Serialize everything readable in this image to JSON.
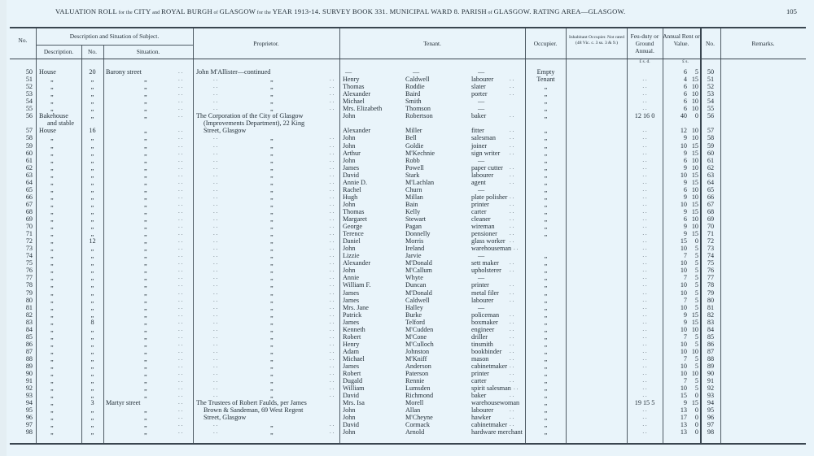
{
  "page": {
    "title_parts": [
      "VALUATION ROLL",
      "FOR THE",
      "CITY",
      "AND",
      "ROYAL BURGH",
      "OF",
      "GLASGOW",
      "FOR THE",
      "YEAR 1913-14.   SURVEY BOOK 331.   MUNICIPAL WARD 8.   PARISH",
      "OF",
      "GLASGOW.   RATING AREA—GLASGOW."
    ],
    "page_number": "105"
  },
  "headers": {
    "no": "No.",
    "description_group": "Description and Situation of Subject.",
    "description": "Description.",
    "number": "No.",
    "situation": "Situation.",
    "proprietor": "Proprietor.",
    "tenant": "Tenant.",
    "occupier": "Occupier.",
    "inhabitant": "Inhabitant Occupier. Not rated (48 Vic. c. 3 ss. 3 & 9.)",
    "feu_duty": "Feu-duty or Ground Annual.",
    "annual_rent": "Annual Rent or Value.",
    "no_right": "No.",
    "remarks": "Remarks.",
    "feu_units": "£  s.  d.",
    "rent_units": "£  s."
  },
  "symbols": {
    "ditto": "„",
    "leader": ". .",
    "dash": "—"
  },
  "rows": [
    [
      "50",
      "House",
      "20",
      "Barony street",
      "John M'Allister—continued",
      "—",
      "—",
      "—",
      "Empty",
      "",
      "6",
      "5"
    ],
    [
      "51",
      "„",
      "„",
      "„",
      "„",
      "Henry",
      "Caldwell",
      "labourer",
      "Tenant",
      "..",
      "4",
      "15"
    ],
    [
      "52",
      "„",
      "„",
      "„",
      "„",
      "Thomas",
      "Roddie",
      "slater",
      "„",
      "..",
      "6",
      "10"
    ],
    [
      "53",
      "„",
      "„",
      "„",
      "„",
      "Alexander",
      "Baird",
      "porter",
      "„",
      "..",
      "6",
      "10"
    ],
    [
      "54",
      "„",
      "„",
      "„",
      "„",
      "Michael",
      "Smith",
      "—",
      "„",
      "..",
      "6",
      "10"
    ],
    [
      "55",
      "„",
      "„",
      "„",
      "„",
      "Mrs. Elizabeth",
      "Thomson",
      "—",
      "„",
      "..",
      "6",
      "10"
    ],
    [
      "56",
      "Bakehouse",
      "„",
      "„",
      "The Corporation of the City of Glasgow",
      "John",
      "Robertson",
      "baker",
      "„",
      "12  16  0",
      "40",
      "0"
    ],
    [
      "",
      "and stable",
      "",
      "",
      "(Improvements Department), 22 King",
      "",
      "",
      "",
      "",
      "",
      "",
      ""
    ],
    [
      "57",
      "House",
      "16",
      "„",
      "Street, Glasgow",
      "Alexander",
      "Miller",
      "fitter",
      "„",
      "..",
      "12",
      "10"
    ],
    [
      "58",
      "„",
      "„",
      "„",
      "„",
      "John",
      "Bell",
      "salesman",
      "„",
      "..",
      "9",
      "10"
    ],
    [
      "59",
      "„",
      "„",
      "„",
      "„",
      "John",
      "Goldie",
      "joiner",
      "„",
      "..",
      "10",
      "15"
    ],
    [
      "60",
      "„",
      "„",
      "„",
      "„",
      "Arthur",
      "M'Kechnie",
      "sign writer",
      "„",
      "..",
      "9",
      "15"
    ],
    [
      "61",
      "„",
      "„",
      "„",
      "„",
      "John",
      "Robb",
      "—",
      "„",
      "..",
      "6",
      "10"
    ],
    [
      "62",
      "„",
      "„",
      "„",
      "„",
      "James",
      "Powell",
      "paper cutter",
      "„",
      "..",
      "9",
      "10"
    ],
    [
      "63",
      "„",
      "„",
      "„",
      "„",
      "David",
      "Stark",
      "labourer",
      "„",
      "..",
      "10",
      "15"
    ],
    [
      "64",
      "„",
      "„",
      "„",
      "„",
      "Annie D.",
      "M'Lachlan",
      "agent",
      "„",
      "..",
      "9",
      "15"
    ],
    [
      "65",
      "„",
      "„",
      "„",
      "„",
      "Rachel",
      "Churn",
      "—",
      "„",
      "..",
      "6",
      "10"
    ],
    [
      "66",
      "„",
      "„",
      "„",
      "„",
      "Hugh",
      "Millan",
      "plate polisher",
      "„",
      "..",
      "9",
      "10"
    ],
    [
      "67",
      "„",
      "„",
      "„",
      "„",
      "John",
      "Bain",
      "printer",
      "„",
      "..",
      "10",
      "15"
    ],
    [
      "68",
      "„",
      "„",
      "„",
      "„",
      "Thomas",
      "Kelly",
      "carter",
      "„",
      "..",
      "9",
      "15"
    ],
    [
      "69",
      "„",
      "„",
      "„",
      "„",
      "Margaret",
      "Stewart",
      "cleaner",
      "„",
      "..",
      "6",
      "10"
    ],
    [
      "70",
      "„",
      "„",
      "„",
      "„",
      "George",
      "Pagan",
      "wireman",
      "„",
      "..",
      "9",
      "10"
    ],
    [
      "71",
      "„",
      "„",
      "„",
      "„",
      "Terence",
      "Donnelly",
      "pensioner",
      "„",
      "..",
      "9",
      "15"
    ],
    [
      "72",
      "„",
      "12",
      "„",
      "„",
      "Daniel",
      "Morris",
      "glass worker",
      "",
      "..",
      "15",
      "0"
    ],
    [
      "73",
      "„",
      "„",
      "„",
      "„",
      "John",
      "Ireland",
      "warehouseman",
      "",
      "..",
      "10",
      "5"
    ],
    [
      "74",
      "„",
      "„",
      "„",
      "„",
      "Lizzie",
      "Jarvie",
      "—",
      "„",
      "..",
      "7",
      "5"
    ],
    [
      "75",
      "„",
      "„",
      "„",
      "„",
      "Alexander",
      "M'Donald",
      "sett maker",
      "„",
      "..",
      "10",
      "5"
    ],
    [
      "76",
      "„",
      "„",
      "„",
      "„",
      "John",
      "M'Callum",
      "upholsterer",
      "„",
      "..",
      "10",
      "5"
    ],
    [
      "77",
      "„",
      "„",
      "„",
      "„",
      "Annie",
      "Whyte",
      "—",
      "„",
      "..",
      "7",
      "5"
    ],
    [
      "78",
      "„",
      "„",
      "„",
      "„",
      "William F.",
      "Duncan",
      "printer",
      "„",
      "..",
      "10",
      "5"
    ],
    [
      "79",
      "„",
      "„",
      "„",
      "„",
      "James",
      "M'Donald",
      "metal filer",
      "„",
      "..",
      "10",
      "5"
    ],
    [
      "80",
      "„",
      "„",
      "„",
      "„",
      "James",
      "Caldwell",
      "labourer",
      "„",
      "..",
      "7",
      "5"
    ],
    [
      "81",
      "„",
      "„",
      "„",
      "„",
      "Mrs. Jane",
      "Halley",
      "—",
      "„",
      "..",
      "10",
      "5"
    ],
    [
      "82",
      "„",
      "„",
      "„",
      "„",
      "Patrick",
      "Burke",
      "policeman",
      "„",
      "..",
      "9",
      "15"
    ],
    [
      "83",
      "„",
      "8",
      "„",
      "„",
      "James",
      "Telford",
      "boxmaker",
      "„",
      "..",
      "9",
      "15"
    ],
    [
      "84",
      "„",
      "„",
      "„",
      "„",
      "Kenneth",
      "M'Cudden",
      "engineer",
      "„",
      "..",
      "10",
      "10"
    ],
    [
      "85",
      "„",
      "„",
      "„",
      "„",
      "Robert",
      "M'Cone",
      "driller",
      "„",
      "..",
      "7",
      "5"
    ],
    [
      "86",
      "„",
      "„",
      "„",
      "„",
      "Henry",
      "M'Culloch",
      "tinsmith",
      "„",
      "..",
      "10",
      "5"
    ],
    [
      "87",
      "„",
      "„",
      "„",
      "„",
      "Adam",
      "Johnston",
      "bookbinder",
      "„",
      "..",
      "10",
      "10"
    ],
    [
      "88",
      "„",
      "„",
      "„",
      "„",
      "Michael",
      "M'Kniff",
      "mason",
      "„",
      "..",
      "7",
      "5"
    ],
    [
      "89",
      "„",
      "„",
      "„",
      "„",
      "James",
      "Anderson",
      "cabinetmaker",
      "„",
      "..",
      "10",
      "5"
    ],
    [
      "90",
      "„",
      "„",
      "„",
      "„",
      "Robert",
      "Paterson",
      "printer",
      "„",
      "..",
      "10",
      "10"
    ],
    [
      "91",
      "„",
      "„",
      "„",
      "„",
      "Dugald",
      "Rennie",
      "carter",
      "„",
      "..",
      "7",
      "5"
    ],
    [
      "92",
      "„",
      "„",
      "„",
      "„",
      "William",
      "Lumsden",
      "spirit salesman",
      "„",
      "..",
      "10",
      "5"
    ],
    [
      "93",
      "„",
      "„",
      "„",
      "„",
      "David",
      "Richmond",
      "baker",
      "„",
      "..",
      "15",
      "0"
    ],
    [
      "94",
      "„",
      "3",
      "Martyr street",
      "The Trustees of Robert Faulds, per James",
      "Mrs. Isa",
      "Morell",
      "warehousewoman",
      "„",
      "19  15  5",
      "9",
      "15"
    ],
    [
      "95",
      "„",
      "„",
      "„",
      "Brown & Sandeman, 69 West Regent",
      "John",
      "Allan",
      "labourer",
      "„",
      "..",
      "13",
      "0"
    ],
    [
      "96",
      "„",
      "„",
      "„",
      "Street, Glasgow",
      "John",
      "M'Cheyne",
      "hawker",
      "„",
      "..",
      "17",
      "0"
    ],
    [
      "97",
      "„",
      "„",
      "„",
      "„",
      "David",
      "Cormack",
      "cabinetmaker",
      "„",
      "..",
      "13",
      "0"
    ],
    [
      "98",
      "„",
      "„",
      "„",
      "„",
      "John",
      "Arnold",
      "hardware merchant",
      "„",
      "..",
      "13",
      "0"
    ]
  ]
}
